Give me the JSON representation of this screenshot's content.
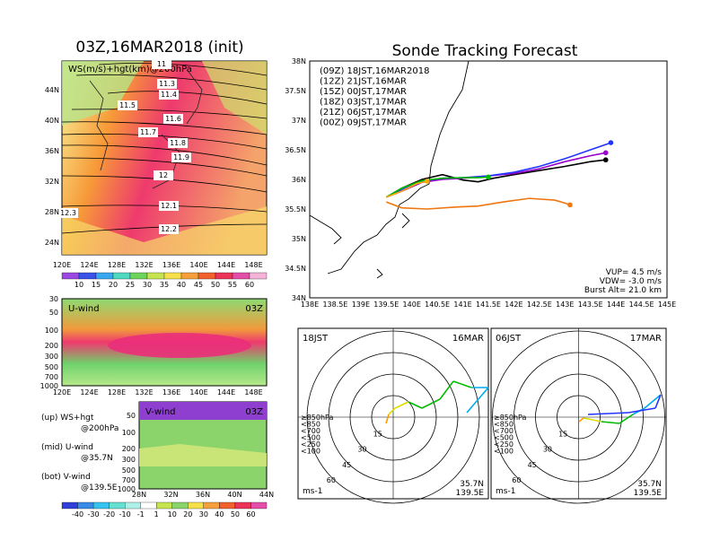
{
  "titles": {
    "left": "03Z,16MAR2018 (init)",
    "right": "Sonde Tracking Forecast"
  },
  "map_panel": {
    "label": "WS(m/s)+hgt(km)@200hPa",
    "lon_ticks": [
      "120E",
      "124E",
      "128E",
      "132E",
      "136E",
      "140E",
      "144E",
      "148E"
    ],
    "lat_ticks": [
      "44N",
      "40N",
      "36N",
      "32N",
      "28N",
      "24N"
    ],
    "contour_labels": [
      "11.3",
      "11.4",
      "11.5",
      "11.6",
      "11.7",
      "11.8",
      "11.9",
      "12",
      "12.1",
      "12.2",
      "12.3",
      "11",
      "11.1"
    ],
    "colorbar": [
      "10",
      "15",
      "20",
      "25",
      "30",
      "35",
      "40",
      "45",
      "50",
      "55",
      "60"
    ]
  },
  "u_panel": {
    "label": "U-wind",
    "time": "03Z",
    "levels": [
      "30",
      "50",
      "100",
      "200",
      "300",
      "500",
      "700",
      "1000"
    ],
    "lon_ticks": [
      "120E",
      "124E",
      "128E",
      "132E",
      "136E",
      "140E",
      "144E",
      "148E"
    ]
  },
  "v_panel": {
    "label": "V-wind",
    "time": "03Z",
    "levels": [
      "50",
      "100",
      "200",
      "300",
      "500",
      "700",
      "1000"
    ],
    "lat_ticks": [
      "28N",
      "32N",
      "36N",
      "40N",
      "44N"
    ],
    "colorbar": [
      "-40",
      "-30",
      "-20",
      "-10",
      "-1",
      "1",
      "10",
      "20",
      "30",
      "40",
      "50",
      "60"
    ]
  },
  "legend_notes": [
    {
      "line1": "(up) WS+hgt",
      "line2": "@200hPa"
    },
    {
      "line1": "(mid) U-wind",
      "line2": "@35.7N"
    },
    {
      "line1": "(bot) V-wind",
      "line2": "@139.5E"
    }
  ],
  "track_panel": {
    "lat_ticks": [
      "38N",
      "37.5N",
      "37N",
      "36.5N",
      "36N",
      "35.5N",
      "35N",
      "34.5N",
      "34N"
    ],
    "lon_ticks": [
      "138E",
      "138.5E",
      "139E",
      "139.5E",
      "140E",
      "140.5E",
      "141E",
      "141.5E",
      "142E",
      "142.5E",
      "143E",
      "143.5E",
      "144E",
      "144.5E",
      "145E"
    ],
    "stats": [
      "VUP= 4.5 m/s",
      "VDW= -3.0 m/s",
      "Burst Alt= 21.0 km"
    ]
  },
  "chart_data": {
    "type": "line",
    "xlim": [
      138,
      145
    ],
    "ylim": [
      34,
      38
    ],
    "series": [
      {
        "name": "(09Z) 18JST,16MAR2018",
        "color": "#000000",
        "x": [
          139.5,
          139.8,
          140.2,
          140.6,
          141.0,
          141.3,
          141.6,
          142.0,
          142.5,
          143.0,
          143.5,
          143.8
        ],
        "y": [
          35.7,
          35.85,
          36.0,
          36.08,
          35.99,
          35.96,
          36.02,
          36.08,
          36.15,
          36.22,
          36.3,
          36.33
        ]
      },
      {
        "name": "(12Z) 21JST,16MAR",
        "color": "#9900cc",
        "x": [
          139.5,
          139.8,
          140.2,
          140.6,
          141.0,
          141.5,
          142.0,
          142.5,
          143.0,
          143.5,
          143.8
        ],
        "y": [
          35.7,
          35.8,
          35.95,
          36.0,
          36.02,
          36.06,
          36.1,
          36.18,
          36.3,
          36.4,
          36.45
        ]
      },
      {
        "name": "(15Z) 00JST,17MAR",
        "color": "#2233ff",
        "x": [
          139.5,
          139.8,
          140.2,
          140.6,
          141.0,
          141.5,
          142.0,
          142.5,
          143.0,
          143.5,
          143.9
        ],
        "y": [
          35.7,
          35.82,
          35.97,
          36.02,
          36.03,
          36.06,
          36.12,
          36.22,
          36.35,
          36.5,
          36.62
        ]
      },
      {
        "name": "(18Z) 03JST,17MAR",
        "color": "#00bb00",
        "x": [
          139.5,
          139.8,
          140.2,
          140.6,
          141.0,
          141.3,
          141.5
        ],
        "y": [
          35.7,
          35.85,
          35.98,
          36.02,
          36.03,
          36.03,
          36.04
        ]
      },
      {
        "name": "(21Z) 06JST,17MAR",
        "color": "#ffaa00",
        "x": [
          139.5,
          139.8,
          140.1,
          140.3
        ],
        "y": [
          35.7,
          35.8,
          35.93,
          35.97
        ]
      },
      {
        "name": "(00Z) 09JST,17MAR",
        "color": "#ee7711",
        "x": [
          139.5,
          139.8,
          140.3,
          140.8,
          141.3,
          141.8,
          142.3,
          142.8,
          143.0,
          143.1
        ],
        "y": [
          35.62,
          35.52,
          35.5,
          35.53,
          35.55,
          35.62,
          35.68,
          35.65,
          35.6,
          35.57
        ]
      }
    ]
  },
  "hodographs": [
    {
      "left": "18JST",
      "right": "16MAR",
      "corner": "35.7N",
      "corner2": "139.5E",
      "unit": "ms-1"
    },
    {
      "left": "06JST",
      "right": "17MAR",
      "corner": "35.7N",
      "corner2": "139.5E",
      "unit": "ms-1"
    }
  ],
  "ring_labels": [
    "15",
    "30",
    "45",
    "60"
  ],
  "pressure_legend": [
    {
      "text": "≥850hPa",
      "color": "#ff2200"
    },
    {
      "text": "<850",
      "color": "#ff9900"
    },
    {
      "text": "<700",
      "color": "#dddd00"
    },
    {
      "text": "<500",
      "color": "#00bb00"
    },
    {
      "text": "<250",
      "color": "#00aaee"
    },
    {
      "text": "<100",
      "color": "#2233ff"
    }
  ]
}
